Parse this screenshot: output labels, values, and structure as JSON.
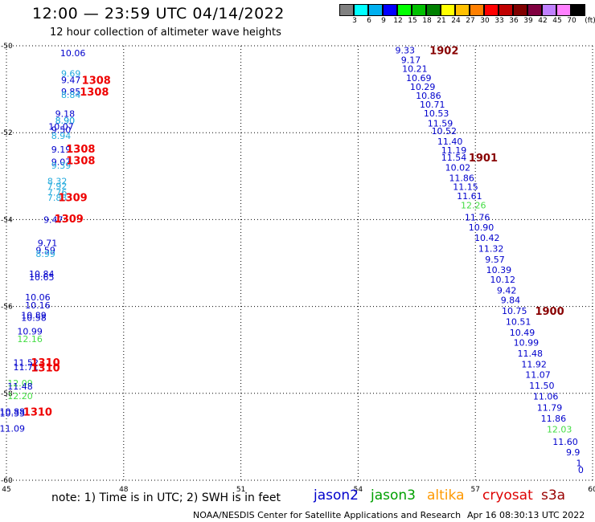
{
  "header": {
    "title": "12:00 — 23:59 UTC 04/14/2022",
    "subtitle": "12 hour collection of altimeter wave heights"
  },
  "legend": {
    "unit": "(ft)",
    "bins": [
      {
        "label": "",
        "color": "#808080"
      },
      {
        "label": "3",
        "color": "#00ffff"
      },
      {
        "label": "6",
        "color": "#00b0f0"
      },
      {
        "label": "9",
        "color": "#0000ff"
      },
      {
        "label": "12",
        "color": "#00ff00"
      },
      {
        "label": "15",
        "color": "#00c000"
      },
      {
        "label": "18",
        "color": "#008000"
      },
      {
        "label": "21",
        "color": "#ffff00"
      },
      {
        "label": "24",
        "color": "#ffc000"
      },
      {
        "label": "27",
        "color": "#ff8000"
      },
      {
        "label": "30",
        "color": "#ff0000"
      },
      {
        "label": "33",
        "color": "#c00000"
      },
      {
        "label": "36",
        "color": "#800000"
      },
      {
        "label": "39",
        "color": "#800040"
      },
      {
        "label": "42",
        "color": "#c080ff"
      },
      {
        "label": "45",
        "color": "#ff80ff"
      },
      {
        "label": "70",
        "color": "#000000"
      }
    ]
  },
  "footer": {
    "note": "note:  1) Time is in UTC;  2) SWH is in feet",
    "satellites": [
      {
        "name": "jason2",
        "color": "#0000cc"
      },
      {
        "name": "jason3",
        "color": "#00a000"
      },
      {
        "name": "altika",
        "color": "#ff9900"
      },
      {
        "name": "cryosat",
        "color": "#dd0000"
      },
      {
        "name": "s3a",
        "color": "#990000"
      }
    ],
    "credit": "NOAA/NESDIS Center for Satellite Applications and Research",
    "timestamp": "Apr 16 08:30:13 UTC 2022"
  },
  "chart_data": {
    "type": "scatter",
    "xlim": [
      45,
      60
    ],
    "ylim": [
      -60,
      -50
    ],
    "x_ticks": [
      "45",
      "48",
      "51",
      "54",
      "57",
      "60"
    ],
    "y_ticks": [
      "-50",
      "-52",
      "-54",
      "-56",
      "-58",
      "-60"
    ],
    "grid": true,
    "colors": {
      "blue": "#0000cc",
      "cyan": "#22aadd",
      "green": "#44dd44",
      "red": "#ee0000",
      "maroon": "#880000"
    },
    "points": [
      {
        "x": 46.7,
        "y": -50.17,
        "t": "10.06",
        "c": "blue"
      },
      {
        "x": 46.65,
        "y": -50.64,
        "t": "9.69",
        "c": "cyan"
      },
      {
        "x": 46.65,
        "y": -50.79,
        "t": "9.47",
        "c": "blue"
      },
      {
        "x": 46.65,
        "y": -51.05,
        "t": "9.85",
        "c": "blue"
      },
      {
        "x": 46.65,
        "y": -51.13,
        "t": "8.84",
        "c": "cyan"
      },
      {
        "x": 46.5,
        "y": -51.56,
        "t": "9.18",
        "c": "blue"
      },
      {
        "x": 46.5,
        "y": -51.72,
        "t": "8.90",
        "c": "cyan"
      },
      {
        "x": 46.5,
        "y": -51.72,
        "t": "8.90",
        "c": "cyan"
      },
      {
        "x": 46.4,
        "y": -51.86,
        "t": "10.07",
        "c": "blue"
      },
      {
        "x": 46.4,
        "y": -51.93,
        "t": "9.50",
        "c": "blue"
      },
      {
        "x": 46.4,
        "y": -52.07,
        "t": "8.94",
        "c": "cyan"
      },
      {
        "x": 46.4,
        "y": -52.38,
        "t": "9.19",
        "c": "blue"
      },
      {
        "x": 46.4,
        "y": -52.67,
        "t": "9.07",
        "c": "blue"
      },
      {
        "x": 46.4,
        "y": -52.75,
        "t": "9.39",
        "c": "cyan"
      },
      {
        "x": 46.3,
        "y": -53.11,
        "t": "8.32",
        "c": "cyan"
      },
      {
        "x": 46.3,
        "y": -53.23,
        "t": "7.92",
        "c": "cyan"
      },
      {
        "x": 46.3,
        "y": -53.37,
        "t": "7.76",
        "c": "cyan"
      },
      {
        "x": 46.3,
        "y": -53.49,
        "t": "7.83",
        "c": "cyan"
      },
      {
        "x": 46.2,
        "y": -54.0,
        "t": "9.47",
        "c": "blue"
      },
      {
        "x": 46.05,
        "y": -54.54,
        "t": "9.71",
        "c": "blue"
      },
      {
        "x": 46.0,
        "y": -54.7,
        "t": "9.59",
        "c": "blue"
      },
      {
        "x": 46.0,
        "y": -54.79,
        "t": "8.99",
        "c": "cyan"
      },
      {
        "x": 45.9,
        "y": -55.25,
        "t": "10.84",
        "c": "blue"
      },
      {
        "x": 45.9,
        "y": -55.32,
        "t": "10.65",
        "c": "blue"
      },
      {
        "x": 45.8,
        "y": -55.79,
        "t": "10.06",
        "c": "blue"
      },
      {
        "x": 45.8,
        "y": -55.97,
        "t": "10.16",
        "c": "blue"
      },
      {
        "x": 45.7,
        "y": -56.2,
        "t": "10.89",
        "c": "blue"
      },
      {
        "x": 45.7,
        "y": -56.26,
        "t": "10.58",
        "c": "blue"
      },
      {
        "x": 45.6,
        "y": -56.57,
        "t": "10.99",
        "c": "blue"
      },
      {
        "x": 45.6,
        "y": -56.75,
        "t": "12.16",
        "c": "green"
      },
      {
        "x": 45.5,
        "y": -57.29,
        "t": "11.52",
        "c": "blue"
      },
      {
        "x": 45.5,
        "y": -57.39,
        "t": "11.71",
        "c": "blue"
      },
      {
        "x": 45.35,
        "y": -57.76,
        "t": "12.09",
        "c": "green"
      },
      {
        "x": 45.35,
        "y": -57.84,
        "t": "11.48",
        "c": "blue"
      },
      {
        "x": 45.35,
        "y": -58.06,
        "t": "12.20",
        "c": "green"
      },
      {
        "x": 45.15,
        "y": -58.42,
        "t": "10.88",
        "c": "blue"
      },
      {
        "x": 45.15,
        "y": -58.46,
        "t": "10.33",
        "c": "blue"
      },
      {
        "x": 45.15,
        "y": -58.81,
        "t": "11.09",
        "c": "blue"
      },
      {
        "x": 55.2,
        "y": -50.1,
        "t": "9.33",
        "c": "blue"
      },
      {
        "x": 55.35,
        "y": -50.32,
        "t": "9.17",
        "c": "blue"
      },
      {
        "x": 55.45,
        "y": -50.53,
        "t": "10.21",
        "c": "blue"
      },
      {
        "x": 55.55,
        "y": -50.74,
        "t": "10.69",
        "c": "blue"
      },
      {
        "x": 55.65,
        "y": -50.94,
        "t": "10.29",
        "c": "blue"
      },
      {
        "x": 55.8,
        "y": -51.15,
        "t": "10.86",
        "c": "blue"
      },
      {
        "x": 55.9,
        "y": -51.35,
        "t": "10.71",
        "c": "blue"
      },
      {
        "x": 56.0,
        "y": -51.55,
        "t": "10.53",
        "c": "blue"
      },
      {
        "x": 56.1,
        "y": -51.78,
        "t": "11.59",
        "c": "blue"
      },
      {
        "x": 56.2,
        "y": -51.96,
        "t": "10.52",
        "c": "blue"
      },
      {
        "x": 56.35,
        "y": -52.2,
        "t": "11.40",
        "c": "blue"
      },
      {
        "x": 56.45,
        "y": -52.4,
        "t": "11.19",
        "c": "blue"
      },
      {
        "x": 56.45,
        "y": -52.57,
        "t": "11.54",
        "c": "blue"
      },
      {
        "x": 56.55,
        "y": -52.8,
        "t": "10.02",
        "c": "blue"
      },
      {
        "x": 56.65,
        "y": -53.04,
        "t": "11.86",
        "c": "blue"
      },
      {
        "x": 56.75,
        "y": -53.24,
        "t": "11.15",
        "c": "blue"
      },
      {
        "x": 56.85,
        "y": -53.46,
        "t": "11.61",
        "c": "blue"
      },
      {
        "x": 56.95,
        "y": -53.67,
        "t": "12.26",
        "c": "green"
      },
      {
        "x": 57.05,
        "y": -53.95,
        "t": "11.76",
        "c": "blue"
      },
      {
        "x": 57.15,
        "y": -54.18,
        "t": "10.90",
        "c": "blue"
      },
      {
        "x": 57.3,
        "y": -54.42,
        "t": "10.42",
        "c": "blue"
      },
      {
        "x": 57.4,
        "y": -54.67,
        "t": "11.32",
        "c": "blue"
      },
      {
        "x": 57.5,
        "y": -54.92,
        "t": "9.57",
        "c": "blue"
      },
      {
        "x": 57.6,
        "y": -55.16,
        "t": "10.39",
        "c": "blue"
      },
      {
        "x": 57.7,
        "y": -55.38,
        "t": "10.12",
        "c": "blue"
      },
      {
        "x": 57.8,
        "y": -55.63,
        "t": "9.42",
        "c": "blue"
      },
      {
        "x": 57.9,
        "y": -55.85,
        "t": "9.84",
        "c": "blue"
      },
      {
        "x": 58.0,
        "y": -56.1,
        "t": "10.75",
        "c": "blue"
      },
      {
        "x": 58.1,
        "y": -56.35,
        "t": "10.51",
        "c": "blue"
      },
      {
        "x": 58.2,
        "y": -56.6,
        "t": "10.49",
        "c": "blue"
      },
      {
        "x": 58.3,
        "y": -56.83,
        "t": "10.99",
        "c": "blue"
      },
      {
        "x": 58.4,
        "y": -57.08,
        "t": "11.48",
        "c": "blue"
      },
      {
        "x": 58.5,
        "y": -57.33,
        "t": "11.92",
        "c": "blue"
      },
      {
        "x": 58.6,
        "y": -57.57,
        "t": "11.07",
        "c": "blue"
      },
      {
        "x": 58.7,
        "y": -57.82,
        "t": "11.50",
        "c": "blue"
      },
      {
        "x": 58.8,
        "y": -58.07,
        "t": "11.06",
        "c": "blue"
      },
      {
        "x": 58.9,
        "y": -58.33,
        "t": "11.79",
        "c": "blue"
      },
      {
        "x": 59.0,
        "y": -58.58,
        "t": "11.86",
        "c": "blue"
      },
      {
        "x": 59.15,
        "y": -58.83,
        "t": "12.03",
        "c": "green"
      },
      {
        "x": 59.3,
        "y": -59.11,
        "t": "11.60",
        "c": "blue"
      },
      {
        "x": 59.5,
        "y": -59.35,
        "t": "9.9",
        "c": "blue"
      },
      {
        "x": 59.65,
        "y": -59.6,
        "t": "1",
        "c": "blue"
      },
      {
        "x": 59.7,
        "y": -59.76,
        "t": "0",
        "c": "blue"
      }
    ],
    "pass_labels": [
      {
        "x": 47.3,
        "y": -50.79,
        "t": "1308",
        "c": "red"
      },
      {
        "x": 47.25,
        "y": -51.05,
        "t": "1308",
        "c": "red"
      },
      {
        "x": 46.9,
        "y": -52.37,
        "t": "1308",
        "c": "red"
      },
      {
        "x": 46.9,
        "y": -52.63,
        "t": "1308",
        "c": "red"
      },
      {
        "x": 46.7,
        "y": -53.48,
        "t": "1309",
        "c": "red"
      },
      {
        "x": 46.6,
        "y": -53.97,
        "t": "1309",
        "c": "red"
      },
      {
        "x": 46.0,
        "y": -57.28,
        "t": "1310",
        "c": "red"
      },
      {
        "x": 46.0,
        "y": -57.4,
        "t": "1310",
        "c": "red"
      },
      {
        "x": 45.8,
        "y": -58.42,
        "t": "1310",
        "c": "red"
      },
      {
        "x": 56.2,
        "y": -50.1,
        "t": "1902",
        "c": "maroon"
      },
      {
        "x": 57.2,
        "y": -52.57,
        "t": "1901",
        "c": "maroon"
      },
      {
        "x": 58.9,
        "y": -56.1,
        "t": "1900",
        "c": "maroon"
      }
    ]
  }
}
